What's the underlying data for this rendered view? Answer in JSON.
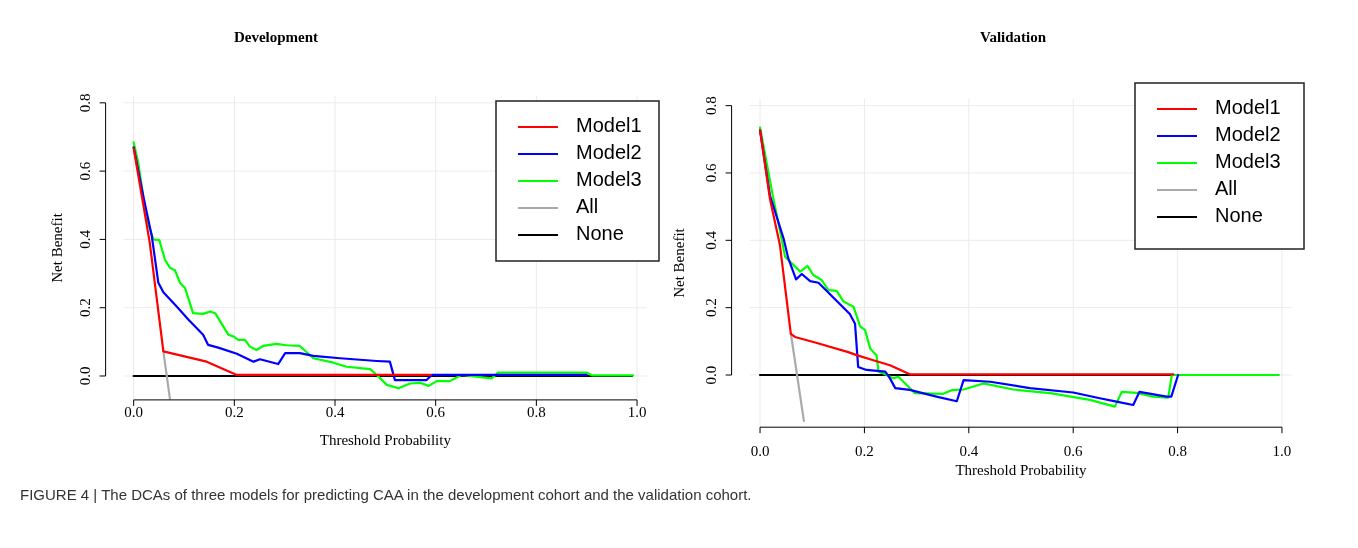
{
  "chart_data": [
    {
      "type": "line",
      "title": "Development",
      "xlabel": "Threshold Probability",
      "ylabel": "Net Benefit",
      "xlim": [
        -0.02,
        1.02
      ],
      "ylim": [
        -0.07,
        0.82
      ],
      "xticks": [
        {
          "value": 0,
          "label": "0.0"
        },
        {
          "value": 0.2,
          "label": "0.2"
        },
        {
          "value": 0.4,
          "label": "0.4"
        },
        {
          "value": 0.6,
          "label": "0.6"
        },
        {
          "value": 0.8,
          "label": "0.8"
        },
        {
          "value": 1,
          "label": "1.0"
        }
      ],
      "yticks": [
        {
          "value": 0,
          "label": "0.0"
        },
        {
          "value": 0.2,
          "label": "0.2"
        },
        {
          "value": 0.4,
          "label": "0.4"
        },
        {
          "value": 0.6,
          "label": "0.6"
        },
        {
          "value": 0.8,
          "label": "0.8"
        }
      ],
      "grid": true,
      "legend": "top right",
      "marker": "none",
      "line_style": "solid",
      "annotations": [
        "FIGURE 4 | The DCAs of three models for predicting CAA in the development cohort and the validation cohort."
      ],
      "series": [
        {
          "name": "Model1",
          "color": "#ff0000",
          "x": [
            0,
            0.032,
            0.059,
            0.145,
            0.205,
            0.59
          ],
          "values": [
            0.667,
            0.39,
            0.072,
            0.042,
            0.003,
            0.003
          ]
        },
        {
          "name": "Model2",
          "color": "#0000ff",
          "x": [
            0,
            0.019,
            0.036,
            0.049,
            0.059,
            0.085,
            0.109,
            0.138,
            0.148,
            0.168,
            0.205,
            0.238,
            0.251,
            0.287,
            0.301,
            0.33,
            0.357,
            0.41,
            0.483,
            0.509,
            0.519,
            0.582,
            0.592,
            0.9
          ],
          "values": [
            0.67,
            0.527,
            0.41,
            0.273,
            0.245,
            0.204,
            0.165,
            0.121,
            0.091,
            0.083,
            0.065,
            0.042,
            0.049,
            0.035,
            0.067,
            0.067,
            0.059,
            0.052,
            0.044,
            0.042,
            -0.012,
            -0.012,
            0.003,
            0.003
          ]
        },
        {
          "name": "Model3",
          "color": "#00ff00",
          "x": [
            0,
            0.009,
            0.026,
            0.039,
            0.051,
            0.062,
            0.072,
            0.082,
            0.092,
            0.102,
            0.118,
            0.138,
            0.152,
            0.162,
            0.188,
            0.198,
            0.208,
            0.221,
            0.231,
            0.244,
            0.257,
            0.284,
            0.303,
            0.33,
            0.357,
            0.397,
            0.423,
            0.47,
            0.483,
            0.503,
            0.526,
            0.549,
            0.569,
            0.586,
            0.602,
            0.628,
            0.651,
            0.711,
            0.724,
            0.9,
            0.91,
            0.992
          ],
          "values": [
            0.684,
            0.625,
            0.459,
            0.4,
            0.398,
            0.341,
            0.317,
            0.31,
            0.273,
            0.258,
            0.184,
            0.182,
            0.189,
            0.184,
            0.121,
            0.116,
            0.106,
            0.106,
            0.086,
            0.076,
            0.088,
            0.094,
            0.09,
            0.088,
            0.052,
            0.039,
            0.027,
            0.02,
            0.003,
            -0.026,
            -0.036,
            -0.022,
            -0.02,
            -0.029,
            -0.015,
            -0.015,
            0.003,
            -0.007,
            0.01,
            0.01,
            0.002,
            0.002
          ]
        },
        {
          "name": "All",
          "color": "#aaaaaa",
          "x": [
            0.059,
            0.072
          ],
          "values": [
            0.072,
            -0.066
          ]
        },
        {
          "name": "None",
          "color": "#000000",
          "x": [
            0,
            0.99
          ],
          "values": [
            0,
            0
          ]
        }
      ]
    },
    {
      "type": "line",
      "title": "Validation",
      "xlabel": "Threshold Probability",
      "ylabel": "Net Benefit",
      "xlim": [
        -0.02,
        1.02
      ],
      "ylim": [
        -0.155,
        0.82
      ],
      "xticks": [
        {
          "value": 0,
          "label": "0.0"
        },
        {
          "value": 0.2,
          "label": "0.2"
        },
        {
          "value": 0.4,
          "label": "0.4"
        },
        {
          "value": 0.6,
          "label": "0.6"
        },
        {
          "value": 0.8,
          "label": "0.8"
        },
        {
          "value": 1,
          "label": "1.0"
        }
      ],
      "yticks": [
        {
          "value": 0,
          "label": "0.0"
        },
        {
          "value": 0.2,
          "label": "0.2"
        },
        {
          "value": 0.4,
          "label": "0.4"
        },
        {
          "value": 0.6,
          "label": "0.6"
        },
        {
          "value": 0.8,
          "label": "0.8"
        }
      ],
      "grid": true,
      "legend": "top right",
      "marker": "none",
      "line_style": "solid",
      "series": [
        {
          "name": "Model1",
          "color": "#ff0000",
          "x": [
            0,
            0.019,
            0.038,
            0.059,
            0.067,
            0.109,
            0.169,
            0.185,
            0.217,
            0.249,
            0.287,
            0.792
          ],
          "values": [
            0.727,
            0.523,
            0.387,
            0.122,
            0.113,
            0.095,
            0.068,
            0.059,
            0.044,
            0.029,
            0.002,
            0.002
          ]
        },
        {
          "name": "Model2",
          "color": "#0000ff",
          "x": [
            0,
            0.019,
            0.045,
            0.054,
            0.069,
            0.08,
            0.096,
            0.112,
            0.172,
            0.182,
            0.188,
            0.204,
            0.24,
            0.249,
            0.259,
            0.287,
            0.338,
            0.377,
            0.39,
            0.441,
            0.517,
            0.6,
            0.651,
            0.683,
            0.715,
            0.727,
            0.779,
            0.788,
            0.801
          ],
          "values": [
            0.727,
            0.533,
            0.406,
            0.347,
            0.284,
            0.3,
            0.279,
            0.274,
            0.181,
            0.152,
            0.024,
            0.015,
            0.01,
            -0.01,
            -0.039,
            -0.044,
            -0.064,
            -0.078,
            -0.015,
            -0.02,
            -0.039,
            -0.052,
            -0.069,
            -0.079,
            -0.089,
            -0.05,
            -0.064,
            -0.064,
            0
          ]
        },
        {
          "name": "Model3",
          "color": "#00ff00",
          "x": [
            0,
            0.026,
            0.038,
            0.048,
            0.077,
            0.091,
            0.102,
            0.118,
            0.131,
            0.147,
            0.16,
            0.179,
            0.192,
            0.201,
            0.211,
            0.223,
            0.227,
            0.239,
            0.255,
            0.265,
            0.297,
            0.351,
            0.367,
            0.39,
            0.428,
            0.485,
            0.556,
            0.632,
            0.68,
            0.693,
            0.722,
            0.753,
            0.782,
            0.789,
            0.993
          ],
          "values": [
            0.735,
            0.52,
            0.43,
            0.351,
            0.307,
            0.324,
            0.297,
            0.282,
            0.252,
            0.25,
            0.218,
            0.203,
            0.144,
            0.134,
            0.079,
            0.059,
            0.01,
            0.003,
            -0.01,
            -0.005,
            -0.054,
            -0.056,
            -0.045,
            -0.043,
            -0.025,
            -0.043,
            -0.054,
            -0.074,
            -0.094,
            -0.05,
            -0.053,
            -0.064,
            -0.067,
            0,
            0
          ]
        },
        {
          "name": "All",
          "color": "#aaaaaa",
          "x": [
            0.059,
            0.084
          ],
          "values": [
            0.124,
            -0.136
          ]
        },
        {
          "name": "None",
          "color": "#000000",
          "x": [
            0,
            0.993
          ],
          "values": [
            0,
            0
          ]
        }
      ]
    }
  ]
}
